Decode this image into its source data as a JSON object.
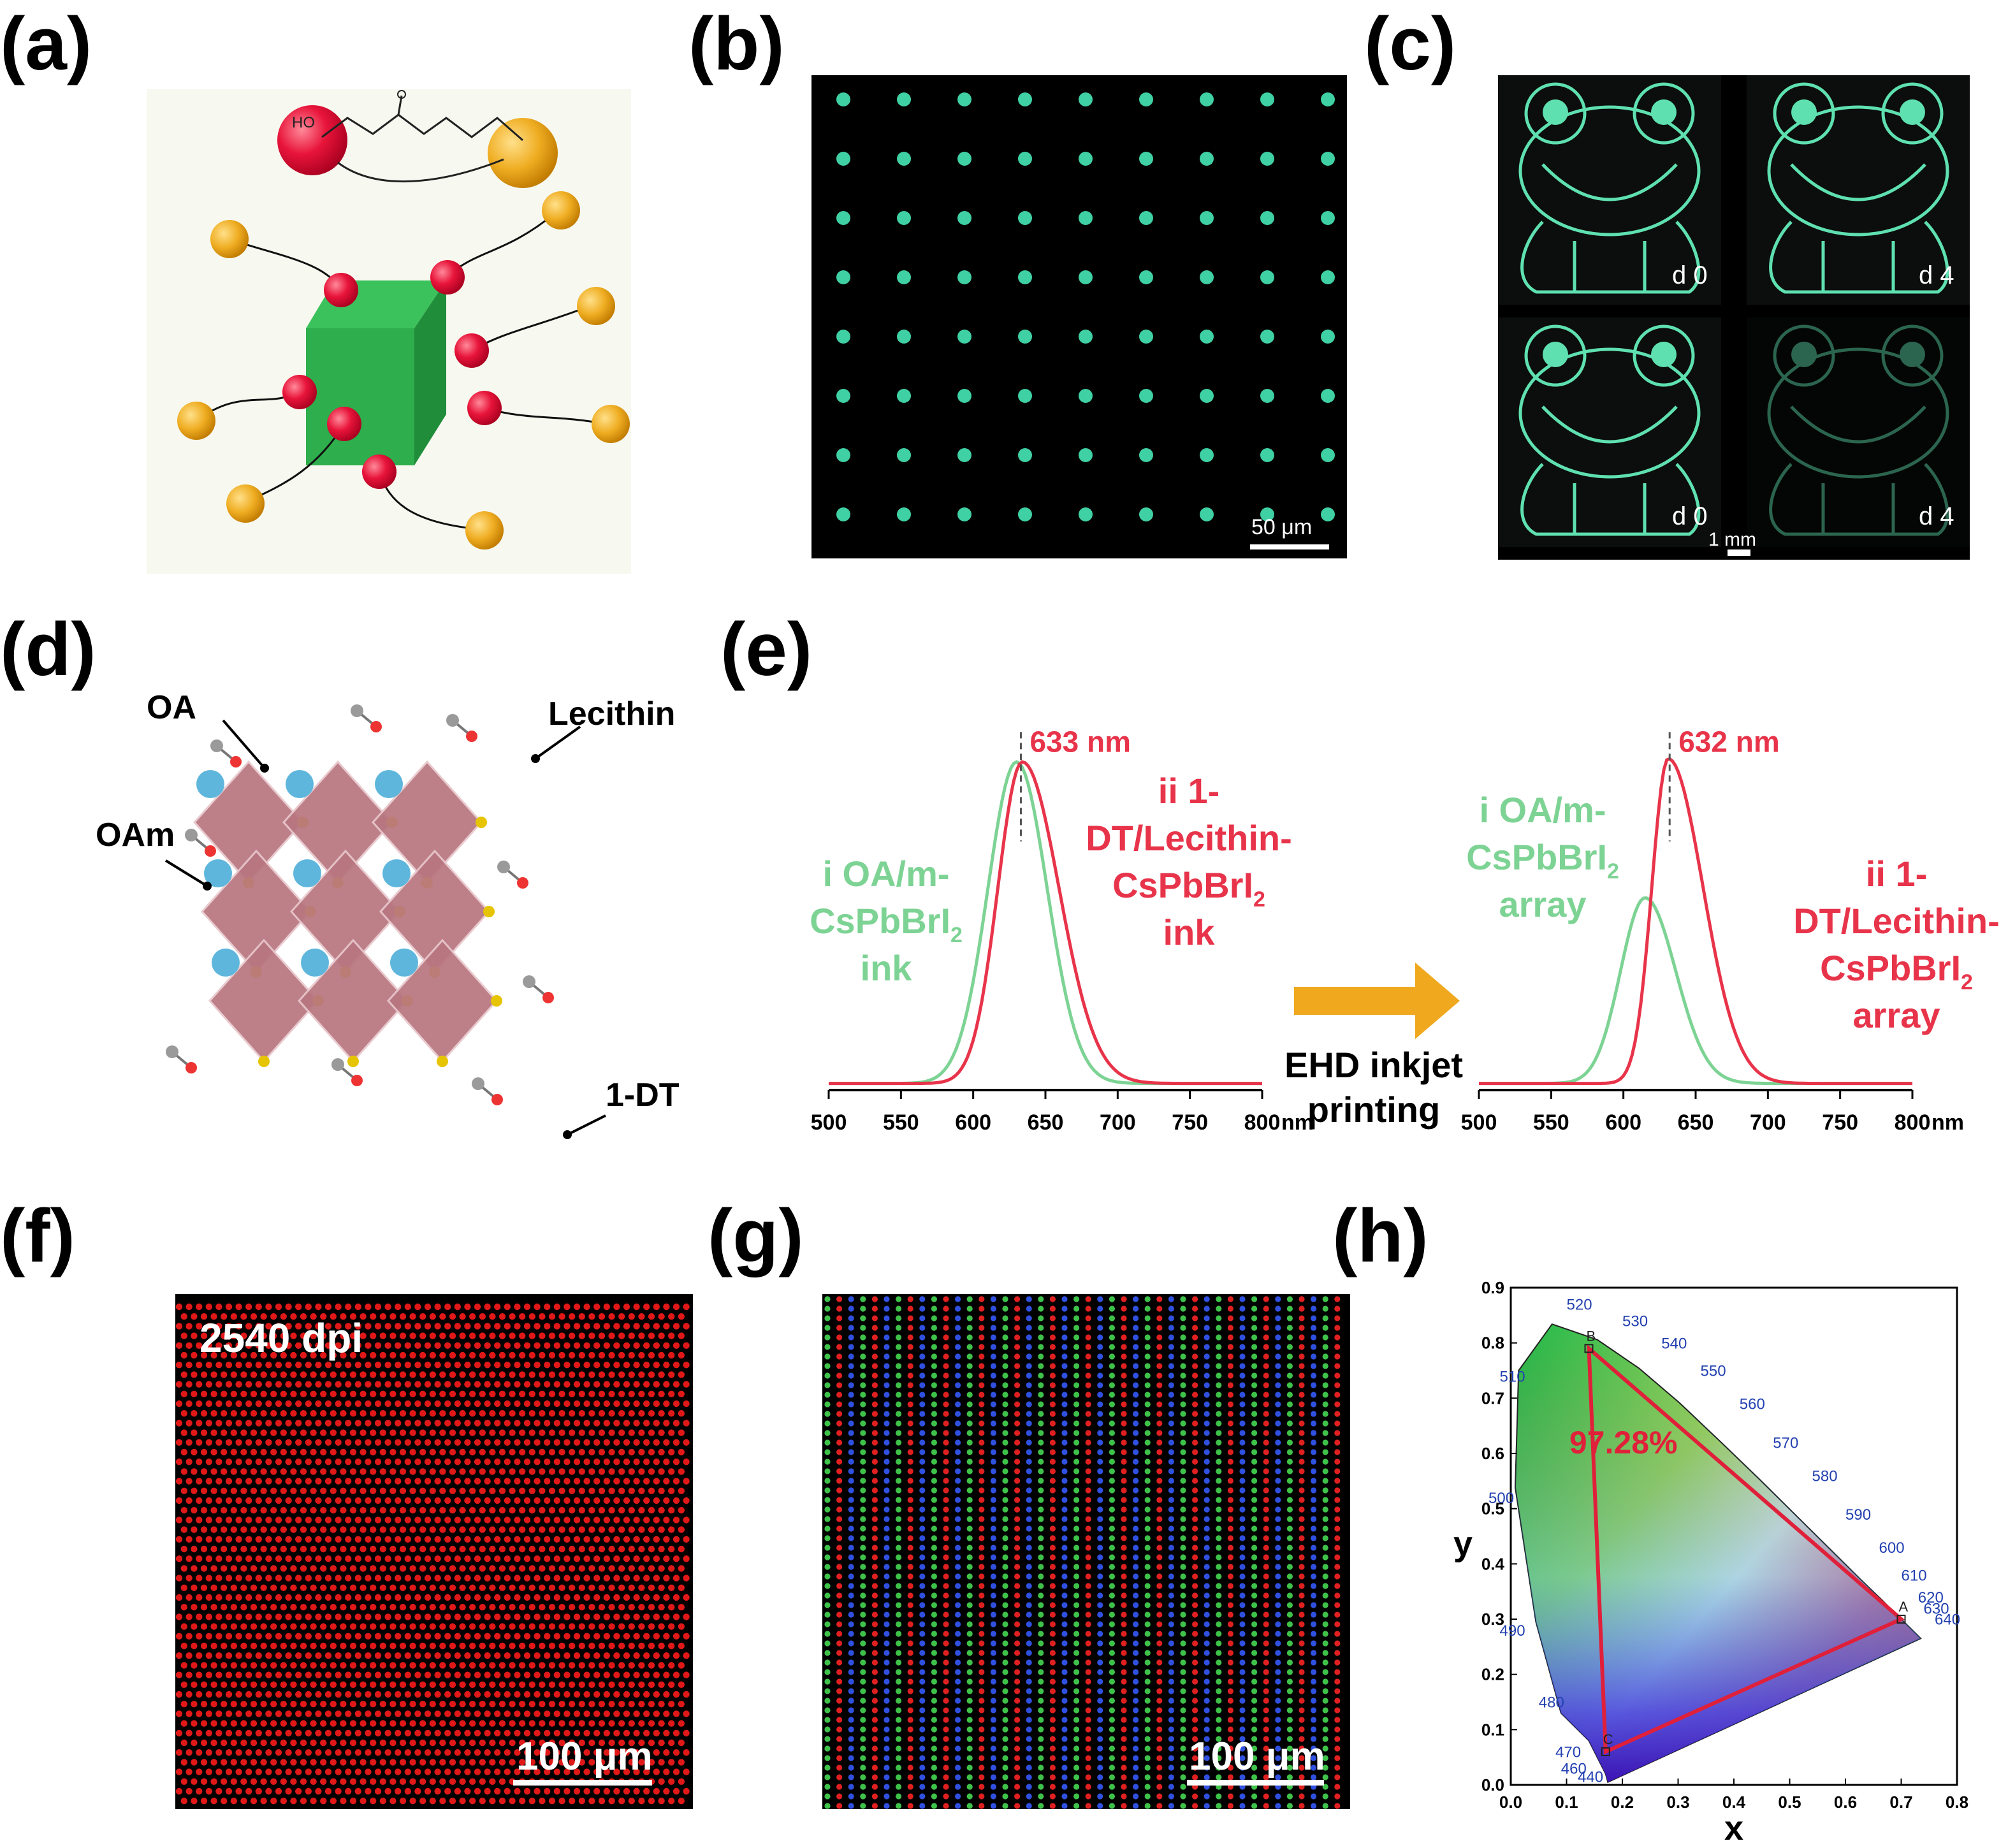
{
  "figure": {
    "panel_labels": [
      "(a)",
      "(b)",
      "(c)",
      "(d)",
      "(e)",
      "(f)",
      "(g)",
      "(h)"
    ]
  },
  "panel_a": {
    "ligand_ho": "HO",
    "colors": {
      "cube": "#27a845",
      "head": "#e8143a",
      "tail": "#efad22"
    }
  },
  "panel_b": {
    "scale_bar": "50 μm",
    "dot_color": "#3fd0a4"
  },
  "panel_c": {
    "tags": [
      "d 0",
      "d 4",
      "d 0",
      "d 4"
    ],
    "scale_bar": "1 mm",
    "line_color": "#5fe0b0"
  },
  "panel_d": {
    "labels": {
      "oa": "OA",
      "lecithin": "Lecithin",
      "oam": "OAm",
      "dt": "1-DT"
    }
  },
  "panel_e": {
    "nm_unit": "nm",
    "arrow_label_1": "EHD inkjet",
    "arrow_label_2": "printing",
    "left": {
      "peak_label": "633 nm",
      "green_label": [
        "i OA/m-",
        "CsPbBrI",
        "2",
        "ink"
      ],
      "red_label": [
        "ii 1-",
        "DT/Lecithin-",
        "CsPbBrI",
        "2",
        "ink"
      ]
    },
    "right": {
      "peak_label": "632 nm",
      "green_label": [
        "i OA/m-",
        "CsPbBrI",
        "2",
        "array"
      ],
      "red_label": [
        "ii 1-",
        "DT/Lecithin-",
        "CsPbBrI",
        "2",
        "array"
      ]
    },
    "colors": {
      "green": "#7dd394",
      "red": "#e8344a",
      "arrow": "#f0a81e"
    }
  },
  "panel_f": {
    "dpi": "2540 dpi",
    "scale_bar": "100 μm"
  },
  "panel_g": {
    "scale_bar": "100 μm"
  },
  "panel_h": {
    "xlabel": "x",
    "ylabel": "y",
    "percent": "97.28%",
    "vertex_labels": [
      "A",
      "B",
      "C"
    ],
    "wavelengths": [
      "520",
      "530",
      "540",
      "550",
      "560",
      "570",
      "580",
      "590",
      "600",
      "610",
      "620",
      "630",
      "640",
      "510",
      "500",
      "490",
      "480",
      "470",
      "460",
      "440"
    ]
  },
  "chart_data": [
    {
      "type": "line",
      "panel": "e-left",
      "xlabel": "nm",
      "x": [
        500,
        520,
        540,
        560,
        580,
        600,
        610,
        620,
        630,
        640,
        650,
        660,
        680,
        700,
        750,
        800
      ],
      "xlim": [
        500,
        800
      ],
      "xticks": [
        500,
        550,
        600,
        650,
        700,
        750,
        800
      ],
      "series": [
        {
          "name": "i OA/m-CsPbBrI2 ink",
          "peak": 630,
          "values": [
            0.02,
            0.02,
            0.02,
            0.03,
            0.08,
            0.3,
            0.55,
            0.82,
            0.99,
            0.82,
            0.5,
            0.25,
            0.08,
            0.04,
            0.02,
            0.02
          ]
        },
        {
          "name": "ii 1-DT/Lecithin-CsPbBrI2 ink",
          "peak": 633,
          "values": [
            0.02,
            0.02,
            0.02,
            0.03,
            0.06,
            0.22,
            0.45,
            0.78,
            1.0,
            0.9,
            0.6,
            0.32,
            0.1,
            0.05,
            0.02,
            0.02
          ]
        }
      ],
      "annotation": "633 nm"
    },
    {
      "type": "line",
      "panel": "e-right",
      "xlabel": "nm",
      "x": [
        500,
        540,
        570,
        590,
        600,
        610,
        615,
        620,
        630,
        640,
        650,
        660,
        680,
        700,
        750,
        800
      ],
      "xlim": [
        500,
        800
      ],
      "xticks": [
        500,
        550,
        600,
        650,
        700,
        750,
        800
      ],
      "series": [
        {
          "name": "i OA/m-CsPbBrI2 array",
          "peak": 615,
          "values": [
            0.01,
            0.02,
            0.08,
            0.25,
            0.4,
            0.55,
            0.58,
            0.55,
            0.42,
            0.26,
            0.14,
            0.07,
            0.03,
            0.02,
            0.01,
            0.01
          ]
        },
        {
          "name": "ii 1-DT/Lecithin-CsPbBrI2 array",
          "peak": 632,
          "values": [
            0.01,
            0.01,
            0.02,
            0.06,
            0.14,
            0.35,
            0.55,
            0.8,
            1.0,
            0.85,
            0.55,
            0.32,
            0.15,
            0.08,
            0.03,
            0.01
          ]
        }
      ],
      "annotation": "632 nm"
    },
    {
      "type": "scatter",
      "panel": "h",
      "title": "",
      "xlabel": "x",
      "ylabel": "y",
      "xlim": [
        0.0,
        0.8
      ],
      "ylim": [
        0.0,
        0.9
      ],
      "xticks": [
        0.0,
        0.1,
        0.2,
        0.3,
        0.4,
        0.5,
        0.6,
        0.7,
        0.8
      ],
      "yticks": [
        0.0,
        0.1,
        0.2,
        0.3,
        0.4,
        0.5,
        0.6,
        0.7,
        0.8,
        0.9
      ],
      "gamut_triangle": [
        {
          "label": "A",
          "x": 0.7,
          "y": 0.3
        },
        {
          "label": "B",
          "x": 0.14,
          "y": 0.79
        },
        {
          "label": "C",
          "x": 0.17,
          "y": 0.06
        }
      ],
      "annotation": "97.28%"
    }
  ]
}
